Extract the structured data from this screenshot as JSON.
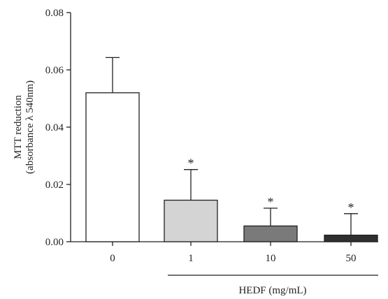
{
  "chart_data": {
    "type": "bar",
    "categories": [
      "0",
      "1",
      "10",
      "50"
    ],
    "values": [
      0.052,
      0.0145,
      0.0055,
      0.0023
    ],
    "error_plus": [
      0.0123,
      0.0107,
      0.0062,
      0.0075
    ],
    "significance": [
      "",
      "*",
      "*",
      "*"
    ],
    "bar_colors": [
      "#ffffff",
      "#d4d4d4",
      "#7a7a7a",
      "#2f2f2f"
    ],
    "ylabel_line1": "MTT reduction",
    "ylabel_line2": "(absorbance λ 540nm)",
    "xlabel": "HEDF (mg/mL)",
    "yticks": [
      "0.00",
      "0.02",
      "0.04",
      "0.06",
      "0.08"
    ],
    "ylim": [
      0,
      0.08
    ],
    "grid": false
  }
}
